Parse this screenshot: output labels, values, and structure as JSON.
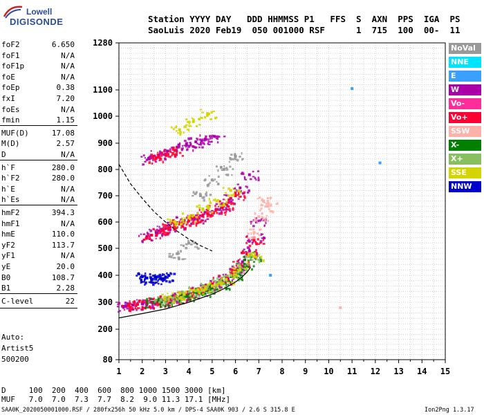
{
  "logo": {
    "line1": "Lowell",
    "line2": "DIGISONDE"
  },
  "header": {
    "columns": "Station YYYY DAY   DDD HHMMSS P1   FFS  S  AXN  PPS  IGA  PS",
    "values": "SaoLuis 2020 Feb19  050 001000 RSF      1  715  100  00-  11"
  },
  "params": [
    {
      "label": "foF2",
      "value": "6.650"
    },
    {
      "label": "foF1",
      "value": "N/A"
    },
    {
      "label": "foF1p",
      "value": "N/A"
    },
    {
      "label": "foE",
      "value": "N/A"
    },
    {
      "label": "foEp",
      "value": "0.38"
    },
    {
      "label": "fxI",
      "value": "7.20"
    },
    {
      "label": "foEs",
      "value": "N/A"
    },
    {
      "label": "fmin",
      "value": "1.15"
    },
    {
      "label": "MUF(D)",
      "value": "17.08"
    },
    {
      "label": "M(D)",
      "value": "2.57"
    },
    {
      "label": "D",
      "value": "N/A"
    },
    {
      "label": "h`F",
      "value": "280.0"
    },
    {
      "label": "h`F2",
      "value": "280.0"
    },
    {
      "label": "h`E",
      "value": "N/A"
    },
    {
      "label": "h`Es",
      "value": "N/A"
    },
    {
      "label": "hmF2",
      "value": "394.3"
    },
    {
      "label": "hmF1",
      "value": "N/A"
    },
    {
      "label": "hmE",
      "value": "110.0"
    },
    {
      "label": "yF2",
      "value": "113.7"
    },
    {
      "label": "yF1",
      "value": "N/A"
    },
    {
      "label": "yE",
      "value": "20.0"
    },
    {
      "label": "B0",
      "value": "108.7"
    },
    {
      "label": "B1",
      "value": "2.28"
    },
    {
      "label": "C-level",
      "value": "22"
    }
  ],
  "auto": {
    "line1": "Auto:",
    "line2": "Artist5",
    "line3": "500200"
  },
  "legend": [
    {
      "label": "NoVal",
      "bg": "#999999",
      "fg": "#ffffff"
    },
    {
      "label": "NNE",
      "bg": "#00e5ff",
      "fg": "#ffffff"
    },
    {
      "label": "E",
      "bg": "#3aa0ff",
      "fg": "#ffffff"
    },
    {
      "label": "W",
      "bg": "#aa00aa",
      "fg": "#ffffff"
    },
    {
      "label": "Vo-",
      "bg": "#ff2d9a",
      "fg": "#ffffff"
    },
    {
      "label": "Vo+",
      "bg": "#ff0033",
      "fg": "#ffffff"
    },
    {
      "label": "SSW",
      "bg": "#ffb0a8",
      "fg": "#ffffff"
    },
    {
      "label": "X-",
      "bg": "#007f00",
      "fg": "#ffffff"
    },
    {
      "label": "X+",
      "bg": "#88c060",
      "fg": "#ffffff"
    },
    {
      "label": "SSE",
      "bg": "#d4d400",
      "fg": "#ffffff"
    },
    {
      "label": "NNW",
      "bg": "#0000cc",
      "fg": "#ffffff"
    }
  ],
  "bottom": {
    "d_row": "D     100  200  400  600  800 1000 1500 3000 [km]",
    "muf_row": "MUF   7.0  7.0  7.3  7.7  8.2  9.0 11.3 17.1 [MHz]"
  },
  "footer": {
    "left": "SAA0K_2020050001000.RSF / 280fx256h 50 kHz 5.0 km / DPS-4 SAA0K 903 / 2.6 S 315.8 E",
    "right": "Ion2Png 1.3.17"
  },
  "chart_data": {
    "type": "scatter",
    "title": "",
    "xlabel": "",
    "ylabel": "",
    "x_ticks": [
      "1",
      "2",
      "3",
      "4",
      "5",
      "6",
      "7",
      "8",
      "9",
      "10",
      "11",
      "12",
      "13",
      "14",
      "15"
    ],
    "y_ticks": [
      "80",
      "200",
      "300",
      "400",
      "500",
      "600",
      "700",
      "800",
      "900",
      "1000",
      "1100",
      "1280"
    ],
    "xlim": [
      1,
      15
    ],
    "ylim": [
      80,
      1280
    ],
    "grid": true,
    "legend_position": "right",
    "series": [
      {
        "name": "W",
        "color": "#aa00aa",
        "x": [
          1.2,
          1.6,
          2.0,
          2.4,
          2.8,
          3.2,
          3.6,
          4.0,
          4.4,
          4.8,
          5.2,
          5.6,
          6.0,
          6.3,
          6.6,
          6.8,
          6.9,
          2.2,
          2.6,
          3.0,
          3.4,
          3.8,
          4.2,
          4.6,
          5.0,
          5.4,
          5.8,
          6.2,
          6.6,
          2.3,
          2.7,
          3.1,
          3.5,
          3.9,
          4.3,
          4.7,
          5.1
        ],
        "y": [
          285,
          290,
          295,
          300,
          305,
          310,
          318,
          328,
          340,
          355,
          372,
          392,
          420,
          450,
          490,
          540,
          600,
          545,
          560,
          575,
          590,
          605,
          615,
          625,
          640,
          660,
          690,
          730,
          780,
          840,
          855,
          870,
          885,
          895,
          905,
          915,
          925
        ]
      },
      {
        "name": "Vo+",
        "color": "#ff0033",
        "x": [
          1.4,
          1.8,
          2.2,
          2.6,
          3.0,
          3.4,
          3.8,
          4.2,
          4.6,
          5.0,
          5.4,
          5.8,
          6.2,
          6.5,
          6.8,
          2.4,
          2.8,
          3.2,
          3.6,
          4.0,
          4.4,
          4.8,
          5.2,
          5.6,
          6.0,
          2.6,
          3.0,
          3.4
        ],
        "y": [
          288,
          292,
          298,
          302,
          308,
          316,
          326,
          338,
          352,
          368,
          388,
          412,
          440,
          480,
          530,
          550,
          565,
          580,
          594,
          606,
          618,
          632,
          648,
          668,
          700,
          845,
          858,
          872
        ]
      },
      {
        "name": "X-",
        "color": "#007f00",
        "x": [
          2.5,
          3.0,
          3.5,
          4.0,
          4.5,
          5.0,
          5.5,
          6.0,
          6.4,
          6.7
        ],
        "y": [
          300,
          306,
          315,
          325,
          338,
          352,
          370,
          395,
          430,
          470
        ]
      },
      {
        "name": "X+",
        "color": "#88c060",
        "x": [
          2.8,
          3.3,
          3.8,
          4.3,
          4.8,
          5.3,
          5.8,
          6.2,
          6.6
        ],
        "y": [
          308,
          316,
          328,
          342,
          358,
          376,
          400,
          430,
          470
        ]
      },
      {
        "name": "SSE",
        "color": "#d4d400",
        "x": [
          3.2,
          3.8,
          4.4,
          5.0,
          5.6,
          6.2,
          6.8,
          3.4,
          4.0,
          4.6,
          5.2,
          5.8,
          3.6,
          4.2,
          4.8
        ],
        "y": [
          320,
          330,
          345,
          360,
          385,
          420,
          470,
          600,
          620,
          650,
          680,
          720,
          950,
          980,
          1010
        ]
      },
      {
        "name": "NNW",
        "color": "#0000cc",
        "x": [
          2.0,
          2.2,
          2.4,
          2.6,
          2.8,
          3.0
        ],
        "y": [
          395,
          390,
          385,
          392,
          388,
          394
        ]
      },
      {
        "name": "E",
        "color": "#3aa0ff",
        "x": [
          11.0,
          12.2,
          7.5
        ],
        "y": [
          1105,
          825,
          400
        ]
      },
      {
        "name": "SSW",
        "color": "#ffb0a8",
        "x": [
          6.8,
          7.0,
          7.2,
          7.4,
          10.5
        ],
        "y": [
          560,
          620,
          680,
          660,
          280
        ]
      },
      {
        "name": "NoVal",
        "color": "#999999",
        "x": [
          4.5,
          5.0,
          5.5,
          6.0,
          3.5,
          4.0
        ],
        "y": [
          700,
          760,
          800,
          850,
          480,
          520
        ]
      }
    ],
    "curves": {
      "virtual_height_solid": {
        "x": [
          1.0,
          2.0,
          3.0,
          4.0,
          5.0,
          5.5,
          6.0,
          6.3,
          6.5,
          6.65
        ],
        "y": [
          242,
          258,
          275,
          300,
          330,
          350,
          375,
          395,
          412,
          430
        ]
      },
      "extrapolated_dashed": {
        "x": [
          1.0,
          1.5,
          2.0,
          2.5,
          3.0,
          3.5,
          4.0,
          4.5,
          5.0
        ],
        "y": [
          820,
          745,
          690,
          640,
          600,
          565,
          535,
          510,
          490
        ]
      }
    }
  }
}
